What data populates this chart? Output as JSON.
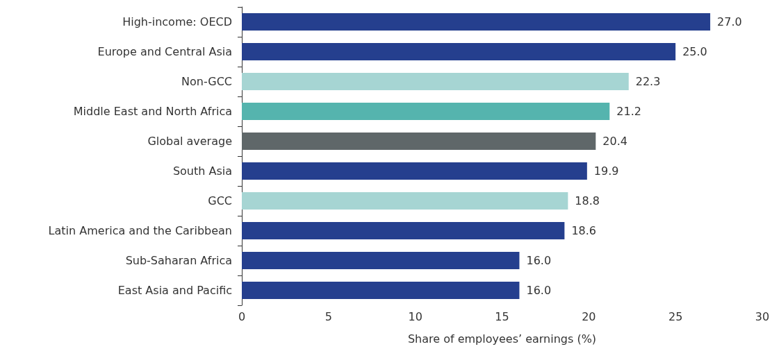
{
  "chart_data": {
    "type": "bar",
    "orientation": "horizontal",
    "xlabel": "Share of employees’ earnings (%)",
    "categories": [
      "High-income: OECD",
      "Europe and Central Asia",
      "Non-GCC",
      "Middle East and North Africa",
      "Global average",
      "South Asia",
      "GCC",
      "Latin America and the Caribbean",
      "Sub-Saharan Africa",
      "East Asia and Pacific"
    ],
    "values": [
      27.0,
      25.0,
      22.3,
      21.2,
      20.4,
      19.9,
      18.8,
      18.6,
      16.0,
      16.0
    ],
    "colors": [
      "#253f8e",
      "#253f8e",
      "#a6d5d3",
      "#55b4ae",
      "#5f6769",
      "#253f8e",
      "#a6d5d3",
      "#253f8e",
      "#253f8e",
      "#253f8e"
    ],
    "xlim": [
      0,
      30
    ],
    "xticks": [
      0,
      5,
      10,
      15,
      20,
      25,
      30
    ],
    "grid": false,
    "value_labels": [
      "27.0",
      "25.0",
      "22.3",
      "21.2",
      "20.4",
      "19.9",
      "18.8",
      "18.6",
      "16.0",
      "16.0"
    ]
  }
}
